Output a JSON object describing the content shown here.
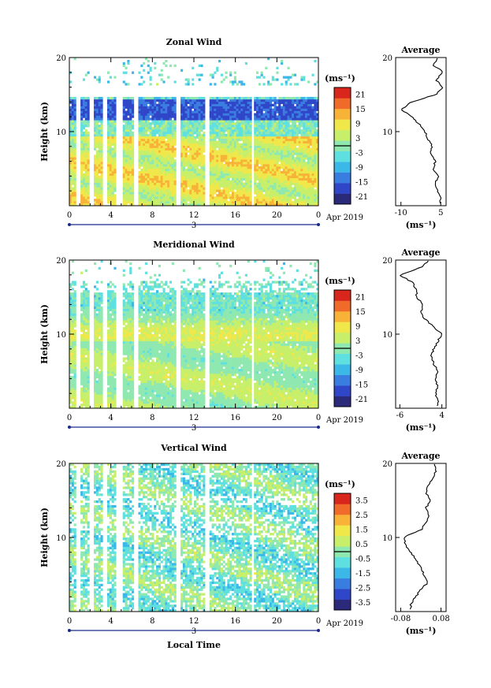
{
  "panels": [
    {
      "title": "Zonal Wind",
      "ylabel": "Height (km)",
      "yticks": [
        "20",
        "10"
      ],
      "xticks": [
        "0",
        "4",
        "8",
        "12",
        "16",
        "20",
        "0"
      ],
      "date_tick": "3",
      "date_suffix": "Apr 2019",
      "colorbar_unit": "(ms⁻¹)",
      "colorbar_ticks": [
        "21",
        "15",
        "9",
        "3",
        "-3",
        "-9",
        "-15",
        "-21"
      ],
      "avg_title": "Average",
      "avg_xticks": [
        "-10",
        "5"
      ],
      "avg_yticks": [
        "20",
        "10"
      ],
      "avg_xlabel": "(ms⁻¹)"
    },
    {
      "title": "Meridional Wind",
      "ylabel": "Height (km)",
      "yticks": [
        "20",
        "10"
      ],
      "xticks": [
        "0",
        "4",
        "8",
        "12",
        "16",
        "20",
        "0"
      ],
      "date_tick": "3",
      "date_suffix": "Apr 2019",
      "colorbar_unit": "(ms⁻¹)",
      "colorbar_ticks": [
        "21",
        "15",
        "9",
        "3",
        "-3",
        "-9",
        "-15",
        "-21"
      ],
      "avg_title": "Average",
      "avg_xticks": [
        "-6",
        "4"
      ],
      "avg_yticks": [
        "20",
        "10"
      ],
      "avg_xlabel": "(ms⁻¹)"
    },
    {
      "title": "Vertical Wind",
      "ylabel": "Height (km)",
      "yticks": [
        "20",
        "10"
      ],
      "xticks": [
        "0",
        "4",
        "8",
        "12",
        "16",
        "20",
        "0"
      ],
      "date_tick": "3",
      "date_suffix": "Apr 2019",
      "colorbar_unit": "(ms⁻¹)",
      "colorbar_ticks": [
        "3.5",
        "2.5",
        "1.5",
        "0.5",
        "-0.5",
        "-1.5",
        "-2.5",
        "-3.5"
      ],
      "avg_title": "Average",
      "avg_xticks": [
        "-0.08",
        "0.08"
      ],
      "avg_yticks": [
        "20",
        "10"
      ],
      "avg_xlabel": "(ms⁻¹)"
    }
  ],
  "xlabel": "Local Time",
  "colors": {
    "scale": [
      "#2b2a7a",
      "#3046c8",
      "#3a7de0",
      "#3bb8e8",
      "#5fe0e0",
      "#8fe8b0",
      "#c8ef6a",
      "#f0e84a",
      "#f8b238",
      "#f06a2a",
      "#d8261c"
    ]
  },
  "chart_data": [
    {
      "type": "heatmap",
      "title": "Zonal Wind",
      "x": "local time (h), 3 Apr 2019",
      "ylabel": "Height (km)",
      "xlim": [
        0,
        24
      ],
      "ylim": [
        0,
        20
      ],
      "zlim": [
        -21,
        21
      ],
      "profile": {
        "name": "Average",
        "xlim": [
          -12,
          7
        ],
        "height": [
          1,
          2,
          3,
          4,
          5,
          6,
          7,
          8,
          9,
          10,
          11,
          12,
          13,
          14,
          15,
          16,
          17,
          18,
          19,
          20
        ],
        "value": [
          5,
          4,
          3,
          4,
          2,
          3,
          1,
          2,
          0,
          -1,
          -3,
          -6,
          -10,
          -6,
          3,
          6,
          3,
          6,
          2,
          4
        ]
      }
    },
    {
      "type": "heatmap",
      "title": "Meridional Wind",
      "x": "local time (h), 3 Apr 2019",
      "ylabel": "Height (km)",
      "xlim": [
        0,
        24
      ],
      "ylim": [
        0,
        20
      ],
      "zlim": [
        -21,
        21
      ],
      "profile": {
        "name": "Average",
        "xlim": [
          -7,
          5
        ],
        "height": [
          1,
          2,
          3,
          4,
          5,
          6,
          7,
          8,
          9,
          10,
          11,
          12,
          13,
          14,
          15,
          16,
          17,
          18,
          19,
          20
        ],
        "value": [
          3,
          2.5,
          3,
          2.5,
          3,
          2,
          1.5,
          2,
          3,
          4,
          2,
          0,
          -1,
          -0.5,
          -2,
          -2,
          -3,
          -6,
          -1,
          1
        ]
      }
    },
    {
      "type": "heatmap",
      "title": "Vertical Wind",
      "x": "local time (h), 3 Apr 2019",
      "ylabel": "Height (km)",
      "xlim": [
        0,
        24
      ],
      "ylim": [
        0,
        20
      ],
      "zlim": [
        -3.5,
        3.5
      ],
      "profile": {
        "name": "Average",
        "xlim": [
          -0.1,
          0.1
        ],
        "height": [
          1,
          2,
          3,
          4,
          5,
          6,
          7,
          8,
          9,
          10,
          11,
          12,
          13,
          14,
          15,
          16,
          17,
          18,
          19,
          20
        ],
        "value": [
          -0.04,
          -0.02,
          0.0,
          0.03,
          0.01,
          0.0,
          -0.02,
          -0.04,
          -0.06,
          -0.07,
          0.0,
          0.02,
          0.03,
          0.02,
          0.04,
          0.02,
          0.03,
          0.05,
          0.06,
          0.05
        ]
      }
    }
  ]
}
